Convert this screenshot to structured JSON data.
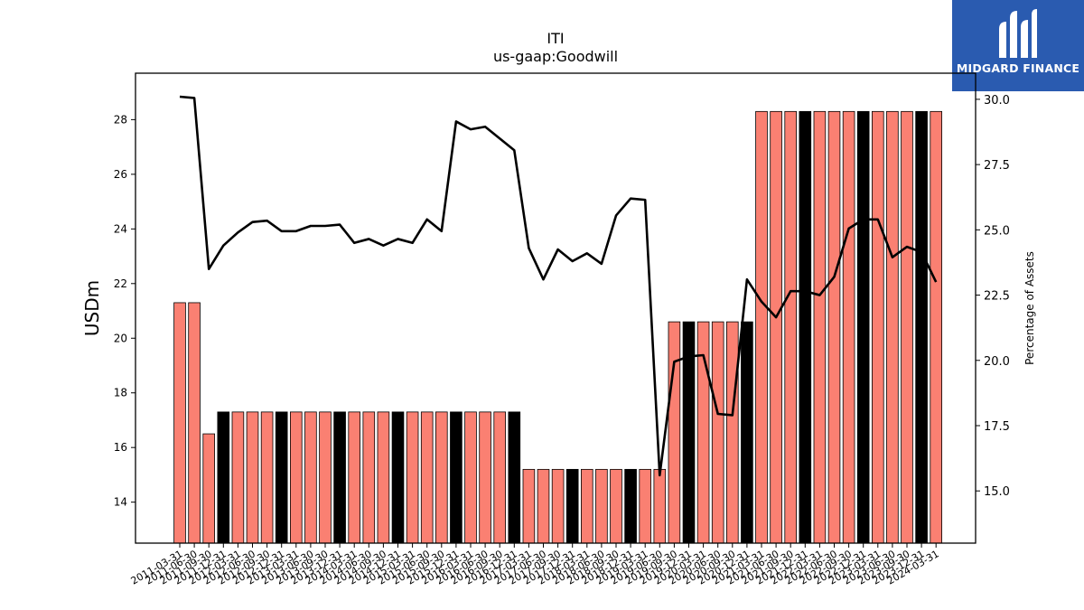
{
  "chart_data": {
    "type": "bar",
    "title": "ITI",
    "subtitle": "us-gaap:Goodwill",
    "ylabel": "USDm",
    "y2label": "Percentage of Assets",
    "ylim": [
      12.5,
      29.7
    ],
    "y2lim": [
      13.0,
      31.0
    ],
    "yticks": [
      14,
      16,
      18,
      20,
      22,
      24,
      26,
      28
    ],
    "y2ticks": [
      15.0,
      17.5,
      20.0,
      22.5,
      25.0,
      27.5,
      30.0
    ],
    "bar_color": "#fa8072",
    "highlight_color": "#000000",
    "line_color": "#000000",
    "categories": [
      "2011-03-31",
      "2011-06-30",
      "2011-09-30",
      "2011-12-31",
      "2012-03-31",
      "2012-06-30",
      "2012-09-30",
      "2012-12-31",
      "2013-03-31",
      "2013-06-30",
      "2013-09-30",
      "2013-12-31",
      "2014-03-31",
      "2014-06-30",
      "2014-09-30",
      "2014-12-31",
      "2015-03-31",
      "2015-06-30",
      "2015-09-30",
      "2015-12-31",
      "2016-03-31",
      "2016-06-30",
      "2016-09-30",
      "2016-12-31",
      "2017-03-31",
      "2017-06-30",
      "2017-09-30",
      "2017-12-31",
      "2018-03-31",
      "2018-06-30",
      "2018-09-30",
      "2018-12-31",
      "2019-03-31",
      "2019-06-30",
      "2019-09-30",
      "2019-12-31",
      "2020-03-31",
      "2020-06-30",
      "2020-09-30",
      "2020-12-31",
      "2021-03-31",
      "2021-06-30",
      "2021-09-30",
      "2021-12-31",
      "2022-03-31",
      "2022-06-30",
      "2022-09-30",
      "2022-12-31",
      "2023-03-31",
      "2023-06-30",
      "2023-09-30",
      "2023-12-31",
      "2024-03-31"
    ],
    "series": [
      {
        "name": "Goodwill",
        "values": [
          21.3,
          21.3,
          16.5,
          17.3,
          17.3,
          17.3,
          17.3,
          17.3,
          17.3,
          17.3,
          17.3,
          17.3,
          17.3,
          17.3,
          17.3,
          17.3,
          17.3,
          17.3,
          17.3,
          17.3,
          17.3,
          17.3,
          17.3,
          17.3,
          15.2,
          15.2,
          15.2,
          15.2,
          15.2,
          15.2,
          15.2,
          15.2,
          15.2,
          15.2,
          20.6,
          20.6,
          20.6,
          20.6,
          20.6,
          20.6,
          28.3,
          28.3,
          28.3,
          28.3,
          28.3,
          28.3,
          28.3,
          28.3,
          28.3,
          28.3,
          28.3,
          28.3,
          28.3
        ],
        "highlighted": [
          false,
          false,
          false,
          true,
          false,
          false,
          false,
          true,
          false,
          false,
          false,
          true,
          false,
          false,
          false,
          true,
          false,
          false,
          false,
          true,
          false,
          false,
          false,
          true,
          false,
          false,
          false,
          true,
          false,
          false,
          false,
          true,
          false,
          false,
          false,
          true,
          false,
          false,
          false,
          true,
          false,
          false,
          false,
          true,
          false,
          false,
          false,
          true,
          false,
          false,
          false,
          true,
          false
        ]
      },
      {
        "name": "Percentage of Assets",
        "axis": "right",
        "values": [
          30.1,
          30.05,
          23.5,
          24.4,
          24.9,
          25.3,
          25.35,
          24.95,
          24.95,
          25.15,
          25.15,
          25.2,
          24.5,
          24.65,
          24.4,
          24.65,
          24.5,
          25.4,
          24.95,
          29.15,
          28.85,
          28.95,
          28.5,
          28.05,
          24.3,
          23.1,
          24.25,
          23.8,
          24.1,
          23.7,
          25.55,
          26.2,
          26.15,
          15.6,
          19.95,
          20.15,
          20.2,
          17.95,
          17.9,
          23.1,
          22.25,
          21.65,
          22.65,
          22.65,
          22.5,
          23.2,
          25.05,
          25.4,
          25.4,
          23.95,
          24.35,
          24.15,
          23.0
        ]
      }
    ],
    "legend": "none",
    "grid": false
  }
}
